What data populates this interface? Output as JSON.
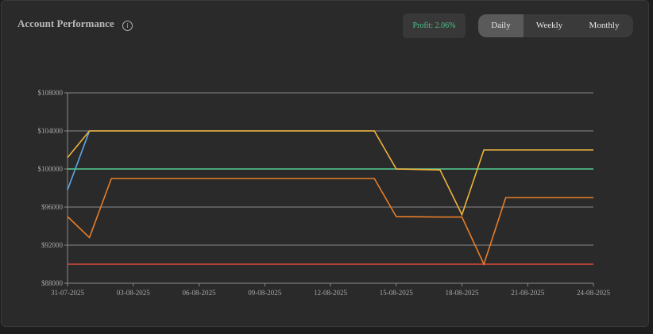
{
  "header": {
    "title": "Account Performance",
    "info_icon": "info-icon",
    "profit_text": "Profit: 2.06%"
  },
  "range_toggle": {
    "options": [
      "Daily",
      "Weekly",
      "Monthly"
    ],
    "selected": "Daily"
  },
  "colors": {
    "panel_bg": "#2a2a2a",
    "grid": "#6a6a6a",
    "profit_text": "#4cc38a",
    "series_blue": "#5fa8e8",
    "series_yellow": "#f0b43c",
    "series_orange": "#e87e28",
    "series_green": "#4cc38a",
    "series_red": "#d94a3a"
  },
  "chart_data": {
    "type": "line",
    "title": "",
    "xlabel": "",
    "ylabel": "",
    "ylim": [
      88000,
      108000
    ],
    "yticks": [
      88000,
      92000,
      96000,
      100000,
      104000,
      108000
    ],
    "ytick_labels": [
      "$88000",
      "$92000",
      "$96000",
      "$100000",
      "$104000",
      "$108000"
    ],
    "xtick_labels": [
      "31-07-2025",
      "03-08-2025",
      "06-08-2025",
      "09-08-2025",
      "12-08-2025",
      "15-08-2025",
      "18-08-2025",
      "21-08-2025",
      "24-08-2025"
    ],
    "dates": [
      "31-07-2025",
      "01-08-2025",
      "02-08-2025",
      "03-08-2025",
      "04-08-2025",
      "05-08-2025",
      "06-08-2025",
      "07-08-2025",
      "08-08-2025",
      "09-08-2025",
      "10-08-2025",
      "11-08-2025",
      "12-08-2025",
      "13-08-2025",
      "14-08-2025",
      "15-08-2025",
      "16-08-2025",
      "17-08-2025",
      "18-08-2025",
      "19-08-2025",
      "20-08-2025",
      "21-08-2025",
      "22-08-2025",
      "23-08-2025",
      "24-08-2025"
    ],
    "grid": true,
    "legend": "none",
    "series": [
      {
        "color": "#5fa8e8",
        "points": [
          [
            "31-07-2025",
            97800
          ],
          [
            "01-08-2025",
            104000
          ]
        ]
      },
      {
        "color": "#4cc38a",
        "points": [
          [
            "31-07-2025",
            100000
          ],
          [
            "24-08-2025",
            100000
          ]
        ]
      },
      {
        "color": "#d94a3a",
        "points": [
          [
            "31-07-2025",
            90000
          ],
          [
            "24-08-2025",
            90000
          ]
        ]
      },
      {
        "color": "#e87e28",
        "points": [
          [
            "31-07-2025",
            95000
          ],
          [
            "01-08-2025",
            92800
          ],
          [
            "02-08-2025",
            99000
          ],
          [
            "14-08-2025",
            99000
          ],
          [
            "15-08-2025",
            95000
          ],
          [
            "17-08-2025",
            94950
          ],
          [
            "18-08-2025",
            94950
          ],
          [
            "19-08-2025",
            90000
          ],
          [
            "20-08-2025",
            97000
          ],
          [
            "24-08-2025",
            97000
          ]
        ]
      },
      {
        "color": "#f0b43c",
        "points": [
          [
            "31-07-2025",
            101200
          ],
          [
            "01-08-2025",
            104000
          ],
          [
            "14-08-2025",
            104000
          ],
          [
            "15-08-2025",
            100000
          ],
          [
            "17-08-2025",
            99900
          ],
          [
            "18-08-2025",
            95200
          ],
          [
            "19-08-2025",
            102000
          ],
          [
            "24-08-2025",
            102000
          ]
        ]
      }
    ]
  }
}
